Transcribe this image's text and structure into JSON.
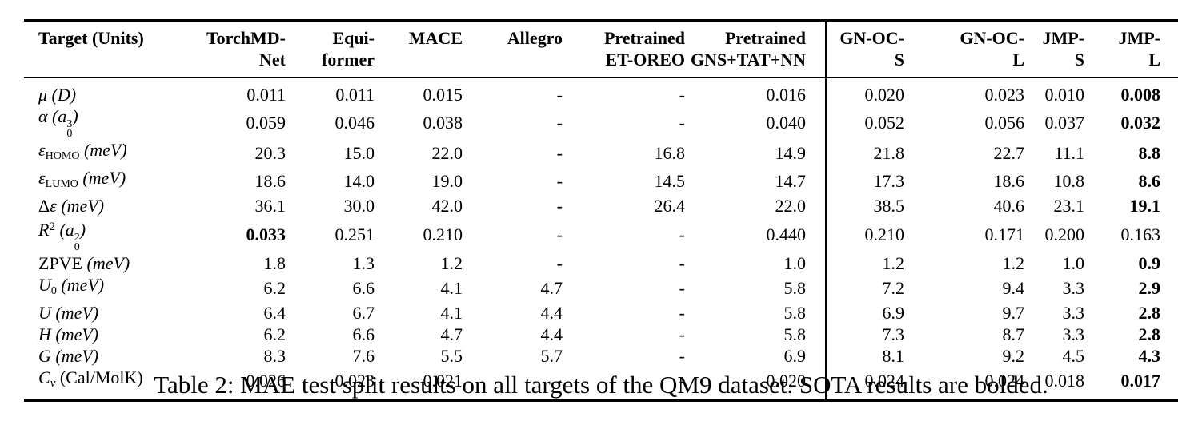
{
  "colors": {
    "text": "#000000",
    "background": "#ffffff",
    "rule": "#000000"
  },
  "caption": "Table 2: MAE test split results on all targets of the QM9 dataset. SOTA results are bolded.",
  "table": {
    "columns": [
      {
        "line1": "Target (Units)",
        "line2": ""
      },
      {
        "line1": "TorchMD-",
        "line2": "Net"
      },
      {
        "line1": "Equi-",
        "line2": "former"
      },
      {
        "line1": "MACE",
        "line2": ""
      },
      {
        "line1": "Allegro",
        "line2": ""
      },
      {
        "line1": "Pretrained",
        "line2": "ET-OREO"
      },
      {
        "line1": "Pretrained",
        "line2": "GNS+TAT+NN"
      },
      {
        "line1": "GN-OC-",
        "line2": "S"
      },
      {
        "line1": "GN-OC-",
        "line2": "L"
      },
      {
        "line1": "JMP-",
        "line2": "S"
      },
      {
        "line1": "JMP-",
        "line2": "L"
      }
    ],
    "rows": [
      {
        "name": "μ (D)",
        "label": [
          {
            "t": "μ (D)",
            "k": "i"
          }
        ],
        "values": [
          "0.011",
          "0.011",
          "0.015",
          "-",
          "-",
          "0.016",
          "0.020",
          "0.023",
          "0.010",
          "0.008"
        ],
        "bold": [
          9
        ]
      },
      {
        "name": "α (a0^3)",
        "label": [
          {
            "t": "α (a",
            "k": "i"
          },
          {
            "t": "3|0",
            "k": "ss"
          },
          {
            "t": ")",
            "k": "i"
          }
        ],
        "values": [
          "0.059",
          "0.046",
          "0.038",
          "-",
          "-",
          "0.040",
          "0.052",
          "0.056",
          "0.037",
          "0.032"
        ],
        "bold": [
          9
        ]
      },
      {
        "name": "ε_HOMO (meV)",
        "label": [
          {
            "t": "ε",
            "k": "i"
          },
          {
            "t": "HOMO",
            "k": "sub"
          },
          {
            "t": " (meV)",
            "k": "i"
          }
        ],
        "values": [
          "20.3",
          "15.0",
          "22.0",
          "-",
          "16.8",
          "14.9",
          "21.8",
          "22.7",
          "11.1",
          "8.8"
        ],
        "bold": [
          9
        ]
      },
      {
        "name": "ε_LUMO (meV)",
        "label": [
          {
            "t": "ε",
            "k": "i"
          },
          {
            "t": "LUMO",
            "k": "sub"
          },
          {
            "t": " (meV)",
            "k": "i"
          }
        ],
        "values": [
          "18.6",
          "14.0",
          "19.0",
          "-",
          "14.5",
          "14.7",
          "17.3",
          "18.6",
          "10.8",
          "8.6"
        ],
        "bold": [
          9
        ]
      },
      {
        "name": "Δε (meV)",
        "label": [
          {
            "t": "Δ",
            "k": "r"
          },
          {
            "t": "ε (meV)",
            "k": "i"
          }
        ],
        "values": [
          "36.1",
          "30.0",
          "42.0",
          "-",
          "26.4",
          "22.0",
          "38.5",
          "40.6",
          "23.1",
          "19.1"
        ],
        "bold": [
          9
        ]
      },
      {
        "name": "R^2 (a0^2)",
        "label": [
          {
            "t": "R",
            "k": "i"
          },
          {
            "t": "2",
            "k": "sup"
          },
          {
            "t": " (a",
            "k": "i"
          },
          {
            "t": "2|0",
            "k": "ss"
          },
          {
            "t": ")",
            "k": "i"
          }
        ],
        "values": [
          "0.033",
          "0.251",
          "0.210",
          "-",
          "-",
          "0.440",
          "0.210",
          "0.171",
          "0.200",
          "0.163"
        ],
        "bold": [
          0
        ]
      },
      {
        "name": "ZPVE (meV)",
        "label": [
          {
            "t": "ZPVE ",
            "k": "r"
          },
          {
            "t": "(meV)",
            "k": "i"
          }
        ],
        "values": [
          "1.8",
          "1.3",
          "1.2",
          "-",
          "-",
          "1.0",
          "1.2",
          "1.2",
          "1.0",
          "0.9"
        ],
        "bold": [
          9
        ]
      },
      {
        "name": "U_0 (meV)",
        "label": [
          {
            "t": "U",
            "k": "i"
          },
          {
            "t": "0",
            "k": "sub"
          },
          {
            "t": " (meV)",
            "k": "i"
          }
        ],
        "values": [
          "6.2",
          "6.6",
          "4.1",
          "4.7",
          "-",
          "5.8",
          "7.2",
          "9.4",
          "3.3",
          "2.9"
        ],
        "bold": [
          9
        ]
      },
      {
        "name": "U (meV)",
        "label": [
          {
            "t": "U (meV)",
            "k": "i"
          }
        ],
        "values": [
          "6.4",
          "6.7",
          "4.1",
          "4.4",
          "-",
          "5.8",
          "6.9",
          "9.7",
          "3.3",
          "2.8"
        ],
        "bold": [
          9
        ]
      },
      {
        "name": "H (meV)",
        "label": [
          {
            "t": "H (meV)",
            "k": "i"
          }
        ],
        "values": [
          "6.2",
          "6.6",
          "4.7",
          "4.4",
          "-",
          "5.8",
          "7.3",
          "8.7",
          "3.3",
          "2.8"
        ],
        "bold": [
          9
        ]
      },
      {
        "name": "G (meV)",
        "label": [
          {
            "t": "G (meV)",
            "k": "i"
          }
        ],
        "values": [
          "8.3",
          "7.6",
          "5.5",
          "5.7",
          "-",
          "6.9",
          "8.1",
          "9.2",
          "4.5",
          "4.3"
        ],
        "bold": [
          9
        ]
      },
      {
        "name": "C_ν (Cal/MolK)",
        "label": [
          {
            "t": "C",
            "k": "i"
          },
          {
            "t": "ν",
            "k": "subi"
          },
          {
            "t": " (Cal/MolK)",
            "k": "r"
          }
        ],
        "values": [
          "0.026",
          "0.023",
          "0.021",
          "-",
          "-",
          "0.020",
          "0.024",
          "0.024",
          "0.018",
          "0.017"
        ],
        "bold": [
          9
        ]
      }
    ]
  }
}
